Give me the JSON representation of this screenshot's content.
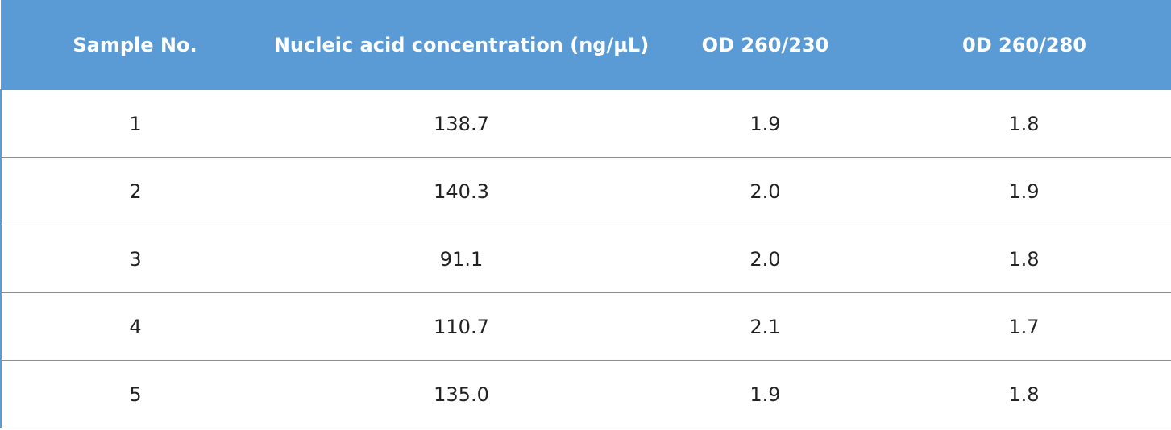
{
  "table": {
    "header": [
      "Sample No.",
      "Nucleic acid concentration (ng/μL)",
      "OD 260/230",
      "0D 260/280"
    ],
    "rows": [
      [
        "1",
        "138.7",
        "1.9",
        "1.8"
      ],
      [
        "2",
        "140.3",
        "2.0",
        "1.9"
      ],
      [
        "3",
        "91.1",
        "2.0",
        "1.8"
      ],
      [
        "4",
        "110.7",
        "2.1",
        "1.7"
      ],
      [
        "5",
        "135.0",
        "1.9",
        "1.8"
      ]
    ]
  }
}
